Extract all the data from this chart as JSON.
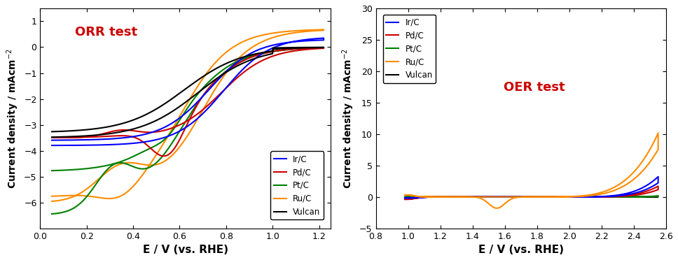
{
  "orr": {
    "title": "ORR test",
    "xlabel": "E / V (vs. RHE)",
    "xlim": [
      0.0,
      1.25
    ],
    "ylim": [
      -7,
      1.5
    ],
    "xticks": [
      0.0,
      0.2,
      0.4,
      0.6,
      0.8,
      1.0,
      1.2
    ],
    "yticks": [
      -6,
      -5,
      -4,
      -3,
      -2,
      -1,
      0,
      1
    ]
  },
  "oer": {
    "title": "OER test",
    "xlabel": "E / V (vs. RHE)",
    "xlim": [
      0.8,
      2.6
    ],
    "ylim": [
      -5,
      30
    ],
    "xticks": [
      0.8,
      1.0,
      1.2,
      1.4,
      1.6,
      1.8,
      2.0,
      2.2,
      2.4,
      2.6
    ],
    "yticks": [
      -5,
      0,
      5,
      10,
      15,
      20,
      25,
      30
    ]
  },
  "colors": {
    "Ir/C": "#0000FF",
    "Pd/C": "#CC0000",
    "Pt/C": "#008000",
    "Ru/C": "#FF8C00",
    "Vulcan": "#000000"
  },
  "title_color": "#CC0000",
  "title_fontsize": 13,
  "ylabel": "Current density / mAcm$^{-2}$",
  "species": [
    "Ir/C",
    "Pd/C",
    "Pt/C",
    "Ru/C",
    "Vulcan"
  ]
}
